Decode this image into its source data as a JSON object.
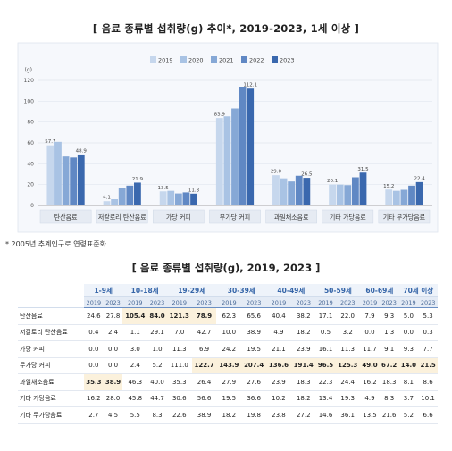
{
  "title1": "[ 음료 종류별 섭취량(g) 추이*, 2019-2023, 1세 이상 ]",
  "footnote": "* 2005년 추계인구로 연령표준화",
  "title2": "[ 음료 종류별 섭취량(g), 2019, 2023 ]",
  "chart_data": {
    "type": "bar",
    "ylabel": "(g)",
    "ylim": [
      0,
      120
    ],
    "yticks": [
      0,
      20,
      40,
      60,
      80,
      100,
      120
    ],
    "legend_position": "top",
    "categories": [
      "탄산음료",
      "저칼로리 탄산음료",
      "가당 커피",
      "무가당 커피",
      "과일채소음료",
      "기타 가당음료",
      "기타 무가당음료"
    ],
    "series": [
      {
        "name": "2019",
        "color": "#c6d7ed",
        "values": [
          57.7,
          4.1,
          13.5,
          83.9,
          29.0,
          20.1,
          15.2
        ]
      },
      {
        "name": "2020",
        "color": "#a9c3e4",
        "values": [
          61.0,
          6.0,
          14.0,
          85.5,
          26.0,
          20.0,
          14.0
        ]
      },
      {
        "name": "2021",
        "color": "#86a8d6",
        "values": [
          47.0,
          17.0,
          11.5,
          93.0,
          23.0,
          19.5,
          15.0
        ]
      },
      {
        "name": "2022",
        "color": "#6088c4",
        "values": [
          46.0,
          19.0,
          12.5,
          114.0,
          28.5,
          27.0,
          19.0
        ]
      },
      {
        "name": "2023",
        "color": "#3a68ae",
        "values": [
          48.9,
          21.9,
          11.3,
          112.1,
          26.5,
          31.5,
          22.4
        ]
      }
    ],
    "data_labels": [
      {
        "category": 0,
        "series": 0,
        "text": "57.7"
      },
      {
        "category": 0,
        "series": 4,
        "text": "48.9"
      },
      {
        "category": 1,
        "series": 0,
        "text": "4.1"
      },
      {
        "category": 1,
        "series": 4,
        "text": "21.9"
      },
      {
        "category": 2,
        "series": 0,
        "text": "13.5"
      },
      {
        "category": 2,
        "series": 4,
        "text": "11.3"
      },
      {
        "category": 3,
        "series": 0,
        "text": "83.9"
      },
      {
        "category": 3,
        "series": 4,
        "text": "112.1"
      },
      {
        "category": 4,
        "series": 0,
        "text": "29.0"
      },
      {
        "category": 4,
        "series": 4,
        "text": "26.5"
      },
      {
        "category": 5,
        "series": 0,
        "text": "20.1"
      },
      {
        "category": 5,
        "series": 4,
        "text": "31.5"
      },
      {
        "category": 6,
        "series": 0,
        "text": "15.2"
      },
      {
        "category": 6,
        "series": 4,
        "text": "22.4"
      }
    ]
  },
  "table": {
    "age_groups": [
      "1-9세",
      "10-18세",
      "19-29세",
      "30-39세",
      "40-49세",
      "50-59세",
      "60-69세",
      "70세 이상"
    ],
    "years": [
      "2019",
      "2023"
    ],
    "rows": [
      {
        "label": "탄산음료",
        "values": [
          "24.6",
          "27.8",
          "105.4",
          "84.0",
          "121.3",
          "78.9",
          "62.3",
          "65.6",
          "40.4",
          "38.2",
          "17.1",
          "22.0",
          "7.9",
          "9.3",
          "5.0",
          "5.3"
        ],
        "highlight": [
          2,
          3,
          4,
          5
        ]
      },
      {
        "label": "저칼로리 탄산음료",
        "values": [
          "0.4",
          "2.4",
          "1.1",
          "29.1",
          "7.0",
          "42.7",
          "10.0",
          "38.9",
          "4.9",
          "18.2",
          "0.5",
          "3.2",
          "0.0",
          "1.3",
          "0.0",
          "0.3"
        ],
        "highlight": []
      },
      {
        "label": "가당 커피",
        "values": [
          "0.0",
          "0.0",
          "3.0",
          "1.0",
          "11.3",
          "6.9",
          "24.2",
          "19.5",
          "21.1",
          "23.9",
          "16.1",
          "11.3",
          "11.7",
          "9.1",
          "9.3",
          "7.7"
        ],
        "highlight": []
      },
      {
        "label": "무가당 커피",
        "values": [
          "0.0",
          "0.0",
          "2.4",
          "5.2",
          "111.0",
          "122.7",
          "143.9",
          "207.4",
          "136.6",
          "191.4",
          "96.5",
          "125.3",
          "49.0",
          "67.2",
          "14.0",
          "21.5"
        ],
        "highlight": [
          5,
          6,
          7,
          8,
          9,
          10,
          11,
          12,
          13,
          14,
          15
        ]
      },
      {
        "label": "과일채소음료",
        "values": [
          "35.3",
          "38.9",
          "46.3",
          "40.0",
          "35.3",
          "26.4",
          "27.9",
          "27.6",
          "23.9",
          "18.3",
          "22.3",
          "24.4",
          "16.2",
          "18.3",
          "8.1",
          "8.6"
        ],
        "highlight": [
          0,
          1
        ]
      },
      {
        "label": "기타 가당음료",
        "values": [
          "16.2",
          "28.0",
          "45.8",
          "44.7",
          "30.6",
          "56.6",
          "19.5",
          "36.6",
          "10.2",
          "18.2",
          "13.4",
          "19.3",
          "4.9",
          "8.3",
          "3.7",
          "10.1"
        ],
        "highlight": []
      },
      {
        "label": "기타 무가당음료",
        "values": [
          "2.7",
          "4.5",
          "5.5",
          "8.3",
          "22.6",
          "38.9",
          "18.2",
          "19.8",
          "23.8",
          "27.2",
          "14.6",
          "36.1",
          "13.5",
          "21.6",
          "5.2",
          "6.6"
        ],
        "highlight": []
      }
    ]
  }
}
